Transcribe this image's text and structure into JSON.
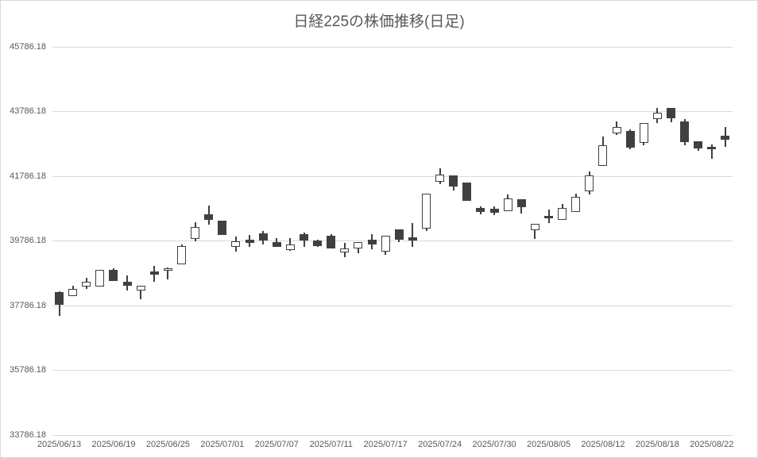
{
  "title": "日経225の株価推移(日足)",
  "colors": {
    "text": "#595959",
    "gridline": "#d9d9d9",
    "candle_up_fill": "#ffffff",
    "candle_down_fill": "#404040",
    "candle_border": "#404040"
  },
  "chart_data": {
    "type": "candlestick",
    "title": "日経225の株価推移(日足)",
    "legend": "none",
    "grid": "horizontal",
    "y_axis": {
      "min": 33786.18,
      "max": 45786.18,
      "tick_interval": 2000,
      "tick_labels": [
        "45786.18",
        "43786.18",
        "41786.18",
        "39786.18",
        "37786.18",
        "35786.18",
        "33786.18"
      ]
    },
    "x_axis": {
      "tick_labels": [
        "2025/06/13",
        "2025/06/19",
        "2025/06/25",
        "2025/07/01",
        "2025/07/07",
        "2025/07/11",
        "2025/07/17",
        "2025/07/24",
        "2025/07/30",
        "2025/08/05",
        "2025/08/12",
        "2025/08/18",
        "2025/08/22"
      ],
      "tick_every_n_candles": 4
    },
    "candles": [
      {
        "date": "2025/06/13",
        "open": 38200,
        "high": 38230,
        "low": 37460,
        "close": 37815
      },
      {
        "date": "2025/06/16",
        "open": 38075,
        "high": 38405,
        "low": 38075,
        "close": 38310
      },
      {
        "date": "2025/06/17",
        "open": 38365,
        "high": 38635,
        "low": 38305,
        "close": 38530
      },
      {
        "date": "2025/06/18",
        "open": 38365,
        "high": 38900,
        "low": 38365,
        "close": 38900
      },
      {
        "date": "2025/06/19",
        "open": 38880,
        "high": 38935,
        "low": 38555,
        "close": 38555
      },
      {
        "date": "2025/06/20",
        "open": 38530,
        "high": 38730,
        "low": 38255,
        "close": 38405
      },
      {
        "date": "2025/06/23",
        "open": 38255,
        "high": 38390,
        "low": 37975,
        "close": 38390
      },
      {
        "date": "2025/06/24",
        "open": 38830,
        "high": 39020,
        "low": 38530,
        "close": 38750
      },
      {
        "date": "2025/06/25",
        "open": 38860,
        "high": 38970,
        "low": 38600,
        "close": 38950
      },
      {
        "date": "2025/06/26",
        "open": 39070,
        "high": 39685,
        "low": 39070,
        "close": 39620
      },
      {
        "date": "2025/06/27",
        "open": 39845,
        "high": 40365,
        "low": 39780,
        "close": 40215
      },
      {
        "date": "2025/06/30",
        "open": 40600,
        "high": 40870,
        "low": 40295,
        "close": 40440
      },
      {
        "date": "2025/07/01",
        "open": 40405,
        "high": 40405,
        "low": 39970,
        "close": 39970
      },
      {
        "date": "2025/07/02",
        "open": 39600,
        "high": 39930,
        "low": 39455,
        "close": 39780
      },
      {
        "date": "2025/07/03",
        "open": 39830,
        "high": 39970,
        "low": 39600,
        "close": 39725
      },
      {
        "date": "2025/07/04",
        "open": 40025,
        "high": 40090,
        "low": 39685,
        "close": 39805
      },
      {
        "date": "2025/07/07",
        "open": 39750,
        "high": 39865,
        "low": 39600,
        "close": 39600
      },
      {
        "date": "2025/07/08",
        "open": 39510,
        "high": 39880,
        "low": 39470,
        "close": 39670
      },
      {
        "date": "2025/07/09",
        "open": 39985,
        "high": 40040,
        "low": 39590,
        "close": 39795
      },
      {
        "date": "2025/07/10",
        "open": 39795,
        "high": 39830,
        "low": 39600,
        "close": 39635
      },
      {
        "date": "2025/07/11",
        "open": 39935,
        "high": 40000,
        "low": 39550,
        "close": 39550
      },
      {
        "date": "2025/07/14",
        "open": 39435,
        "high": 39725,
        "low": 39275,
        "close": 39560
      },
      {
        "date": "2025/07/15",
        "open": 39560,
        "high": 39740,
        "low": 39410,
        "close": 39740
      },
      {
        "date": "2025/07/16",
        "open": 39825,
        "high": 39985,
        "low": 39520,
        "close": 39685
      },
      {
        "date": "2025/07/17",
        "open": 39460,
        "high": 39950,
        "low": 39355,
        "close": 39950
      },
      {
        "date": "2025/07/18",
        "open": 40135,
        "high": 40135,
        "low": 39740,
        "close": 39825
      },
      {
        "date": "2025/07/22",
        "open": 39905,
        "high": 40340,
        "low": 39600,
        "close": 39790
      },
      {
        "date": "2025/07/23",
        "open": 40170,
        "high": 41250,
        "low": 40105,
        "close": 41250
      },
      {
        "date": "2025/07/24",
        "open": 41620,
        "high": 42030,
        "low": 41530,
        "close": 41825
      },
      {
        "date": "2025/07/25",
        "open": 41820,
        "high": 41820,
        "low": 41350,
        "close": 41455
      },
      {
        "date": "2025/07/28",
        "open": 41595,
        "high": 41595,
        "low": 41020,
        "close": 41020
      },
      {
        "date": "2025/07/29",
        "open": 40800,
        "high": 40855,
        "low": 40610,
        "close": 40675
      },
      {
        "date": "2025/07/30",
        "open": 40775,
        "high": 40865,
        "low": 40595,
        "close": 40660
      },
      {
        "date": "2025/07/31",
        "open": 40715,
        "high": 41210,
        "low": 40715,
        "close": 41100
      },
      {
        "date": "2025/08/01",
        "open": 41070,
        "high": 41070,
        "low": 40635,
        "close": 40820
      },
      {
        "date": "2025/08/04",
        "open": 40125,
        "high": 40305,
        "low": 39855,
        "close": 40305
      },
      {
        "date": "2025/08/05",
        "open": 40570,
        "high": 40760,
        "low": 40350,
        "close": 40490
      },
      {
        "date": "2025/08/06",
        "open": 40430,
        "high": 40920,
        "low": 40430,
        "close": 40815
      },
      {
        "date": "2025/08/07",
        "open": 40675,
        "high": 41250,
        "low": 40675,
        "close": 41140
      },
      {
        "date": "2025/08/08",
        "open": 41310,
        "high": 41945,
        "low": 41225,
        "close": 41800
      },
      {
        "date": "2025/08/12",
        "open": 42105,
        "high": 43020,
        "low": 42105,
        "close": 42740
      },
      {
        "date": "2025/08/13",
        "open": 43110,
        "high": 43480,
        "low": 43055,
        "close": 43315
      },
      {
        "date": "2025/08/14",
        "open": 43190,
        "high": 43235,
        "low": 42620,
        "close": 42660
      },
      {
        "date": "2025/08/15",
        "open": 42825,
        "high": 43440,
        "low": 42740,
        "close": 43440
      },
      {
        "date": "2025/08/18",
        "open": 43545,
        "high": 43905,
        "low": 43440,
        "close": 43740
      },
      {
        "date": "2025/08/19",
        "open": 43885,
        "high": 43885,
        "low": 43460,
        "close": 43580
      },
      {
        "date": "2025/08/20",
        "open": 43480,
        "high": 43545,
        "low": 42740,
        "close": 42840
      },
      {
        "date": "2025/08/21",
        "open": 42865,
        "high": 42865,
        "low": 42575,
        "close": 42645
      },
      {
        "date": "2025/08/22",
        "open": 42700,
        "high": 42760,
        "low": 42330,
        "close": 42620
      },
      {
        "date": "2025/08/25",
        "open": 43030,
        "high": 43315,
        "low": 42700,
        "close": 42905
      }
    ]
  }
}
